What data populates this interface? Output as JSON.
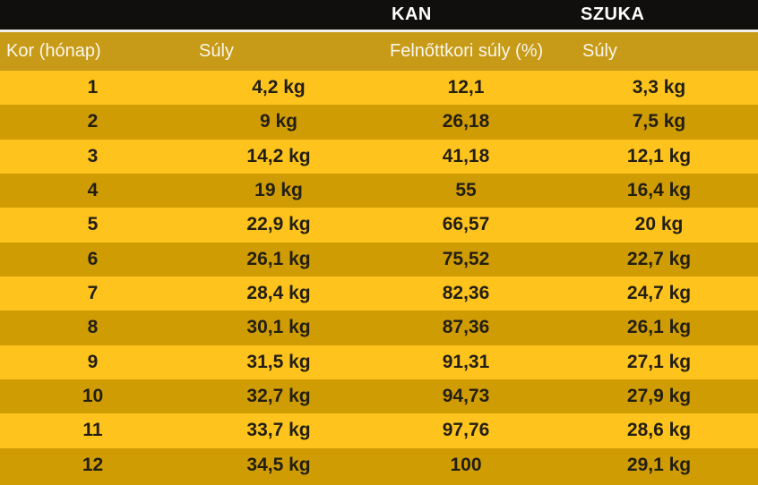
{
  "colors": {
    "black_header_bg": "#100f0d",
    "separator": "#f2f0ec",
    "column_header_bg": "#c79b17",
    "row_bright_bg": "#fec41d",
    "row_dark_bg": "#cf9c04",
    "data_text": "#221e12",
    "header_text": "#ffffff",
    "column_header_text": "#faf6ec"
  },
  "chart_data": {
    "type": "table",
    "title": "Dog growth weight table (Hungarian)",
    "group_headers": {
      "kan": "KAN",
      "szuka": "SZUKA"
    },
    "columns": [
      "Kor (hónap)",
      "Súly",
      "Felnőttkori súly (%)",
      "Súly"
    ],
    "rows": [
      [
        "1",
        "4,2 kg",
        "12,1",
        "3,3 kg"
      ],
      [
        "2",
        "9 kg",
        "26,18",
        "7,5 kg"
      ],
      [
        "3",
        "14,2 kg",
        "41,18",
        "12,1 kg"
      ],
      [
        "4",
        "19 kg",
        "55",
        "16,4 kg"
      ],
      [
        "5",
        "22,9 kg",
        "66,57",
        "20 kg"
      ],
      [
        "6",
        "26,1 kg",
        "75,52",
        "22,7 kg"
      ],
      [
        "7",
        "28,4 kg",
        "82,36",
        "24,7 kg"
      ],
      [
        "8",
        "30,1 kg",
        "87,36",
        "26,1 kg"
      ],
      [
        "9",
        "31,5 kg",
        "91,31",
        "27,1 kg"
      ],
      [
        "10",
        "32,7 kg",
        "94,73",
        "27,9 kg"
      ],
      [
        "11",
        "33,7 kg",
        "97,76",
        "28,6 kg"
      ],
      [
        "12",
        "34,5 kg",
        "100",
        "29,1 kg"
      ]
    ],
    "layout": {
      "row_striping": [
        "bright",
        "dark"
      ],
      "data_alignment": "center",
      "header_alignment": "left"
    }
  }
}
